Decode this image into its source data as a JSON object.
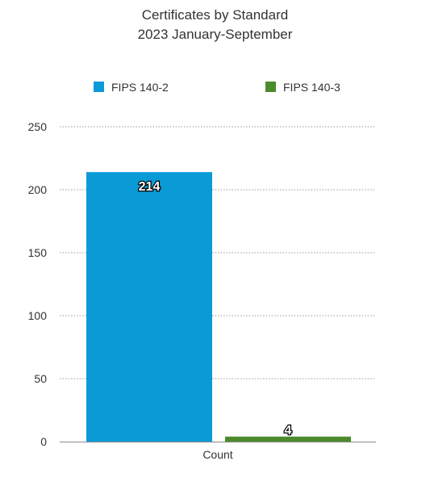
{
  "chart_data": {
    "type": "bar",
    "title": "Certificates by Standard",
    "subtitle": "2023 January-September",
    "categories": [
      "Count"
    ],
    "series": [
      {
        "name": "FIPS 140-2",
        "values": [
          214
        ],
        "color": "#0a9bd6"
      },
      {
        "name": "FIPS 140-3",
        "values": [
          4
        ],
        "color": "#4b8b2e"
      }
    ],
    "ylim": [
      0,
      250
    ],
    "yticks": [
      0,
      50,
      100,
      150,
      200,
      250
    ],
    "xlabel": "",
    "ylabel": "",
    "grid": true,
    "legend": "top"
  }
}
